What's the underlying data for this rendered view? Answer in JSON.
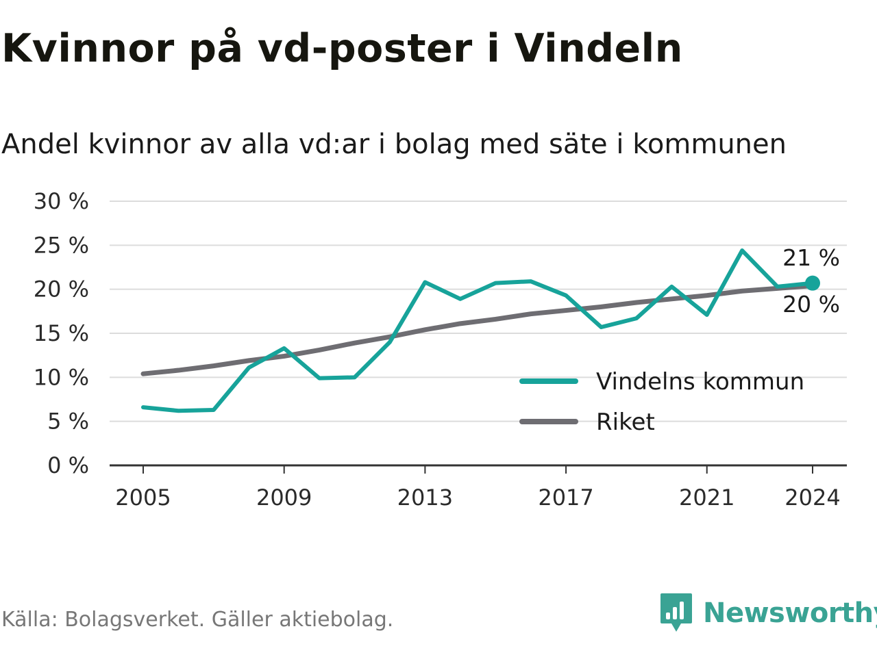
{
  "header": {
    "title": "Kvinnor på vd-poster i Vindeln",
    "subtitle": "Andel kvinnor av alla vd:ar i bolag med säte i kommunen"
  },
  "footer": {
    "source": "Källa: Bolagsverket. Gäller aktiebolag.",
    "brand": "Newsworthy",
    "brand_icon": "bar-chart-badge-icon",
    "brand_color": "#3aa394"
  },
  "chart_data": {
    "type": "line",
    "x": [
      2005,
      2006,
      2007,
      2008,
      2009,
      2010,
      2011,
      2012,
      2013,
      2014,
      2015,
      2016,
      2017,
      2018,
      2019,
      2020,
      2021,
      2022,
      2023,
      2024
    ],
    "x_ticks": [
      2005,
      2009,
      2013,
      2017,
      2021,
      2024
    ],
    "ylim": [
      0,
      30
    ],
    "y_ticks": [
      0,
      5,
      10,
      15,
      20,
      25,
      30
    ],
    "y_tick_suffix": " %",
    "grid": true,
    "legend_position": "lower-right",
    "series": [
      {
        "name": "Vindelns kommun",
        "color": "#17a39a",
        "values": [
          6.6,
          6.2,
          6.3,
          11.1,
          13.3,
          9.9,
          10.0,
          14.0,
          20.8,
          18.9,
          20.7,
          20.9,
          19.3,
          15.7,
          16.7,
          20.3,
          17.1,
          24.4,
          20.3,
          20.7
        ],
        "end_label": "21 %"
      },
      {
        "name": "Riket",
        "color": "#6e6d72",
        "values": [
          10.4,
          10.8,
          11.3,
          11.9,
          12.4,
          13.1,
          13.9,
          14.6,
          15.4,
          16.1,
          16.6,
          17.2,
          17.6,
          18.0,
          18.5,
          18.9,
          19.3,
          19.8,
          20.1,
          20.4
        ],
        "end_label": "20 %"
      }
    ]
  }
}
